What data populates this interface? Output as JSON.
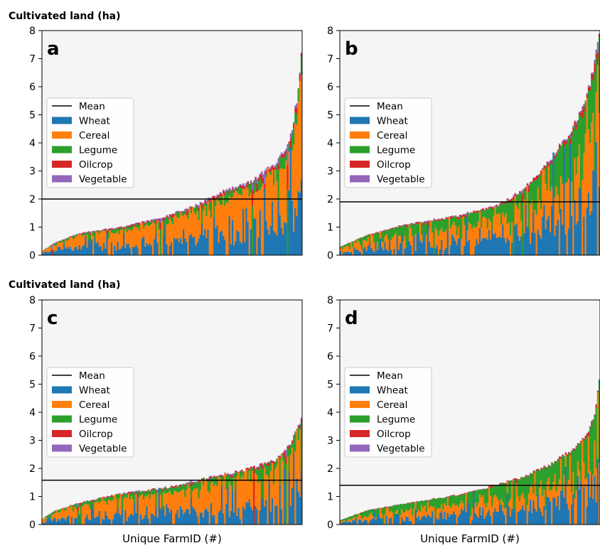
{
  "figure": {
    "ylabel_top": "Cultivated land (ha)",
    "ylabel_bottom": "Cultivated land (ha)",
    "xlabel_left": "Unique FarmID (#)",
    "xlabel_right": "Unique FarmID (#)",
    "legend": [
      "Mean",
      "Wheat",
      "Cereal",
      "Legume",
      "Oilcrop",
      "Vegetable"
    ],
    "colors": {
      "Wheat": "#1f77b4",
      "Cereal": "#ff7f0e",
      "Legume": "#2ca02c",
      "Oilcrop": "#d62728",
      "Vegetable": "#9467bd",
      "Mean": "#000000",
      "plot_bg": "#f5f5f5"
    }
  },
  "chart_data": [
    {
      "type": "bar",
      "stacked": true,
      "panel": "a",
      "ylim": [
        0,
        8
      ],
      "yticks": [
        0,
        1,
        2,
        3,
        4,
        5,
        6,
        7,
        8
      ],
      "mean": 2.0,
      "legend_position": "center-left",
      "n_farms": 170,
      "x_ticks_shown": false,
      "total_profile": [
        [
          0,
          0.15
        ],
        [
          0.05,
          0.45
        ],
        [
          0.15,
          0.8
        ],
        [
          0.3,
          1.0
        ],
        [
          0.45,
          1.3
        ],
        [
          0.6,
          1.8
        ],
        [
          0.7,
          2.3
        ],
        [
          0.8,
          2.6
        ],
        [
          0.9,
          3.3
        ],
        [
          0.95,
          4.0
        ],
        [
          0.98,
          5.5
        ],
        [
          1.0,
          7.5
        ]
      ],
      "composition": {
        "Wheat": 0.35,
        "Cereal": 0.5,
        "Legume": 0.1,
        "Oilcrop": 0.03,
        "Vegetable": 0.02
      }
    },
    {
      "type": "bar",
      "stacked": true,
      "panel": "b",
      "ylim": [
        0,
        8
      ],
      "yticks": [
        0,
        1,
        2,
        3,
        4,
        5,
        6,
        7,
        8
      ],
      "mean": 1.9,
      "legend_position": "center-left",
      "n_farms": 170,
      "x_ticks_shown": false,
      "total_profile": [
        [
          0,
          0.3
        ],
        [
          0.1,
          0.7
        ],
        [
          0.25,
          1.1
        ],
        [
          0.45,
          1.4
        ],
        [
          0.6,
          1.75
        ],
        [
          0.7,
          2.3
        ],
        [
          0.8,
          3.3
        ],
        [
          0.9,
          4.6
        ],
        [
          0.95,
          5.7
        ],
        [
          0.98,
          6.8
        ],
        [
          1.0,
          8.0
        ]
      ],
      "composition": {
        "Wheat": 0.3,
        "Cereal": 0.4,
        "Legume": 0.27,
        "Oilcrop": 0.02,
        "Vegetable": 0.01
      }
    },
    {
      "type": "bar",
      "stacked": true,
      "panel": "c",
      "ylim": [
        0,
        8
      ],
      "yticks": [
        0,
        1,
        2,
        3,
        4,
        5,
        6,
        7,
        8
      ],
      "mean": 1.58,
      "legend_position": "center-left",
      "n_farms": 170,
      "x_ticks_shown": false,
      "total_profile": [
        [
          0,
          0.2
        ],
        [
          0.05,
          0.5
        ],
        [
          0.15,
          0.8
        ],
        [
          0.3,
          1.1
        ],
        [
          0.5,
          1.35
        ],
        [
          0.65,
          1.7
        ],
        [
          0.8,
          2.0
        ],
        [
          0.9,
          2.3
        ],
        [
          0.95,
          2.8
        ],
        [
          1.0,
          3.8
        ]
      ],
      "composition": {
        "Wheat": 0.3,
        "Cereal": 0.55,
        "Legume": 0.12,
        "Oilcrop": 0.02,
        "Vegetable": 0.01
      }
    },
    {
      "type": "bar",
      "stacked": true,
      "panel": "d",
      "ylim": [
        0,
        8
      ],
      "yticks": [
        0,
        1,
        2,
        3,
        4,
        5,
        6,
        7,
        8
      ],
      "mean": 1.4,
      "legend_position": "center-left",
      "n_farms": 170,
      "x_ticks_shown": false,
      "total_profile": [
        [
          0,
          0.15
        ],
        [
          0.1,
          0.5
        ],
        [
          0.25,
          0.75
        ],
        [
          0.45,
          1.05
        ],
        [
          0.6,
          1.4
        ],
        [
          0.7,
          1.7
        ],
        [
          0.8,
          2.1
        ],
        [
          0.9,
          2.7
        ],
        [
          0.95,
          3.2
        ],
        [
          0.98,
          4.0
        ],
        [
          1.0,
          5.2
        ]
      ],
      "composition": {
        "Wheat": 0.35,
        "Cereal": 0.3,
        "Legume": 0.33,
        "Oilcrop": 0.015,
        "Vegetable": 0.005
      }
    }
  ]
}
